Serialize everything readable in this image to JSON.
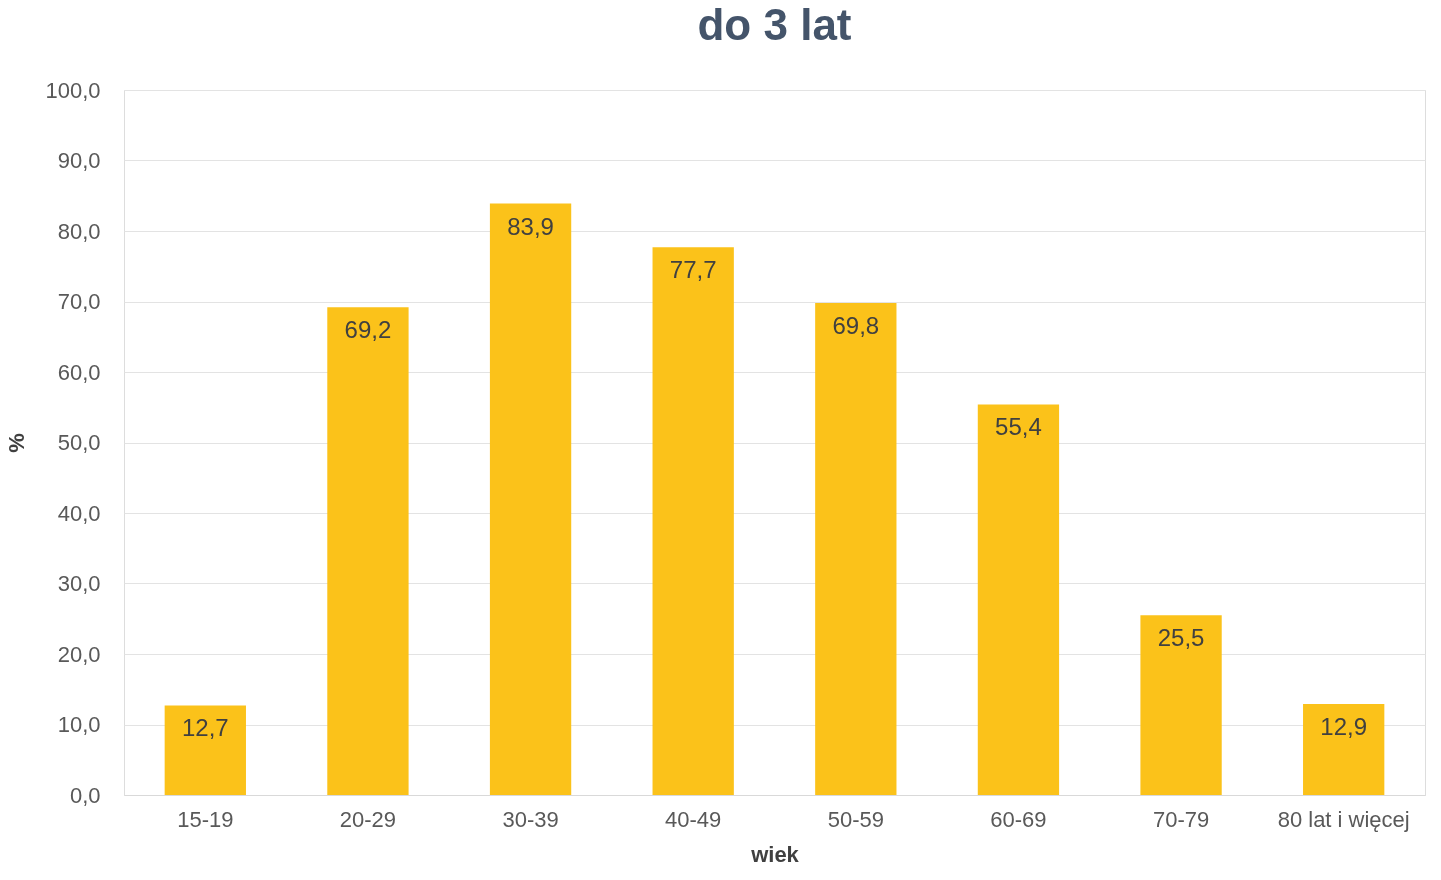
{
  "chart_data": {
    "type": "bar",
    "title": "do 3 lat",
    "xlabel": "wiek",
    "ylabel": "%",
    "categories": [
      "15-19",
      "20-29",
      "30-39",
      "40-49",
      "50-59",
      "60-69",
      "70-79",
      "80 lat i więcej"
    ],
    "values": [
      12.7,
      69.2,
      83.9,
      77.7,
      69.8,
      55.4,
      25.5,
      12.9
    ],
    "value_labels": [
      "12,7",
      "69,2",
      "83,9",
      "77,7",
      "69,8",
      "55,4",
      "25,5",
      "12,9"
    ],
    "color": "#fbc21a",
    "ylim": [
      0,
      100
    ],
    "yticks": [
      {
        "value": 0,
        "label": "0,0"
      },
      {
        "value": 10,
        "label": "10,0"
      },
      {
        "value": 20,
        "label": "20,0"
      },
      {
        "value": 30,
        "label": "30,0"
      },
      {
        "value": 40,
        "label": "40,0"
      },
      {
        "value": 50,
        "label": "50,0"
      },
      {
        "value": 60,
        "label": "60,0"
      },
      {
        "value": 70,
        "label": "70,0"
      },
      {
        "value": 80,
        "label": "80,0"
      },
      {
        "value": 90,
        "label": "90,0"
      },
      {
        "value": 100,
        "label": "100,0"
      }
    ],
    "grid": "y"
  }
}
